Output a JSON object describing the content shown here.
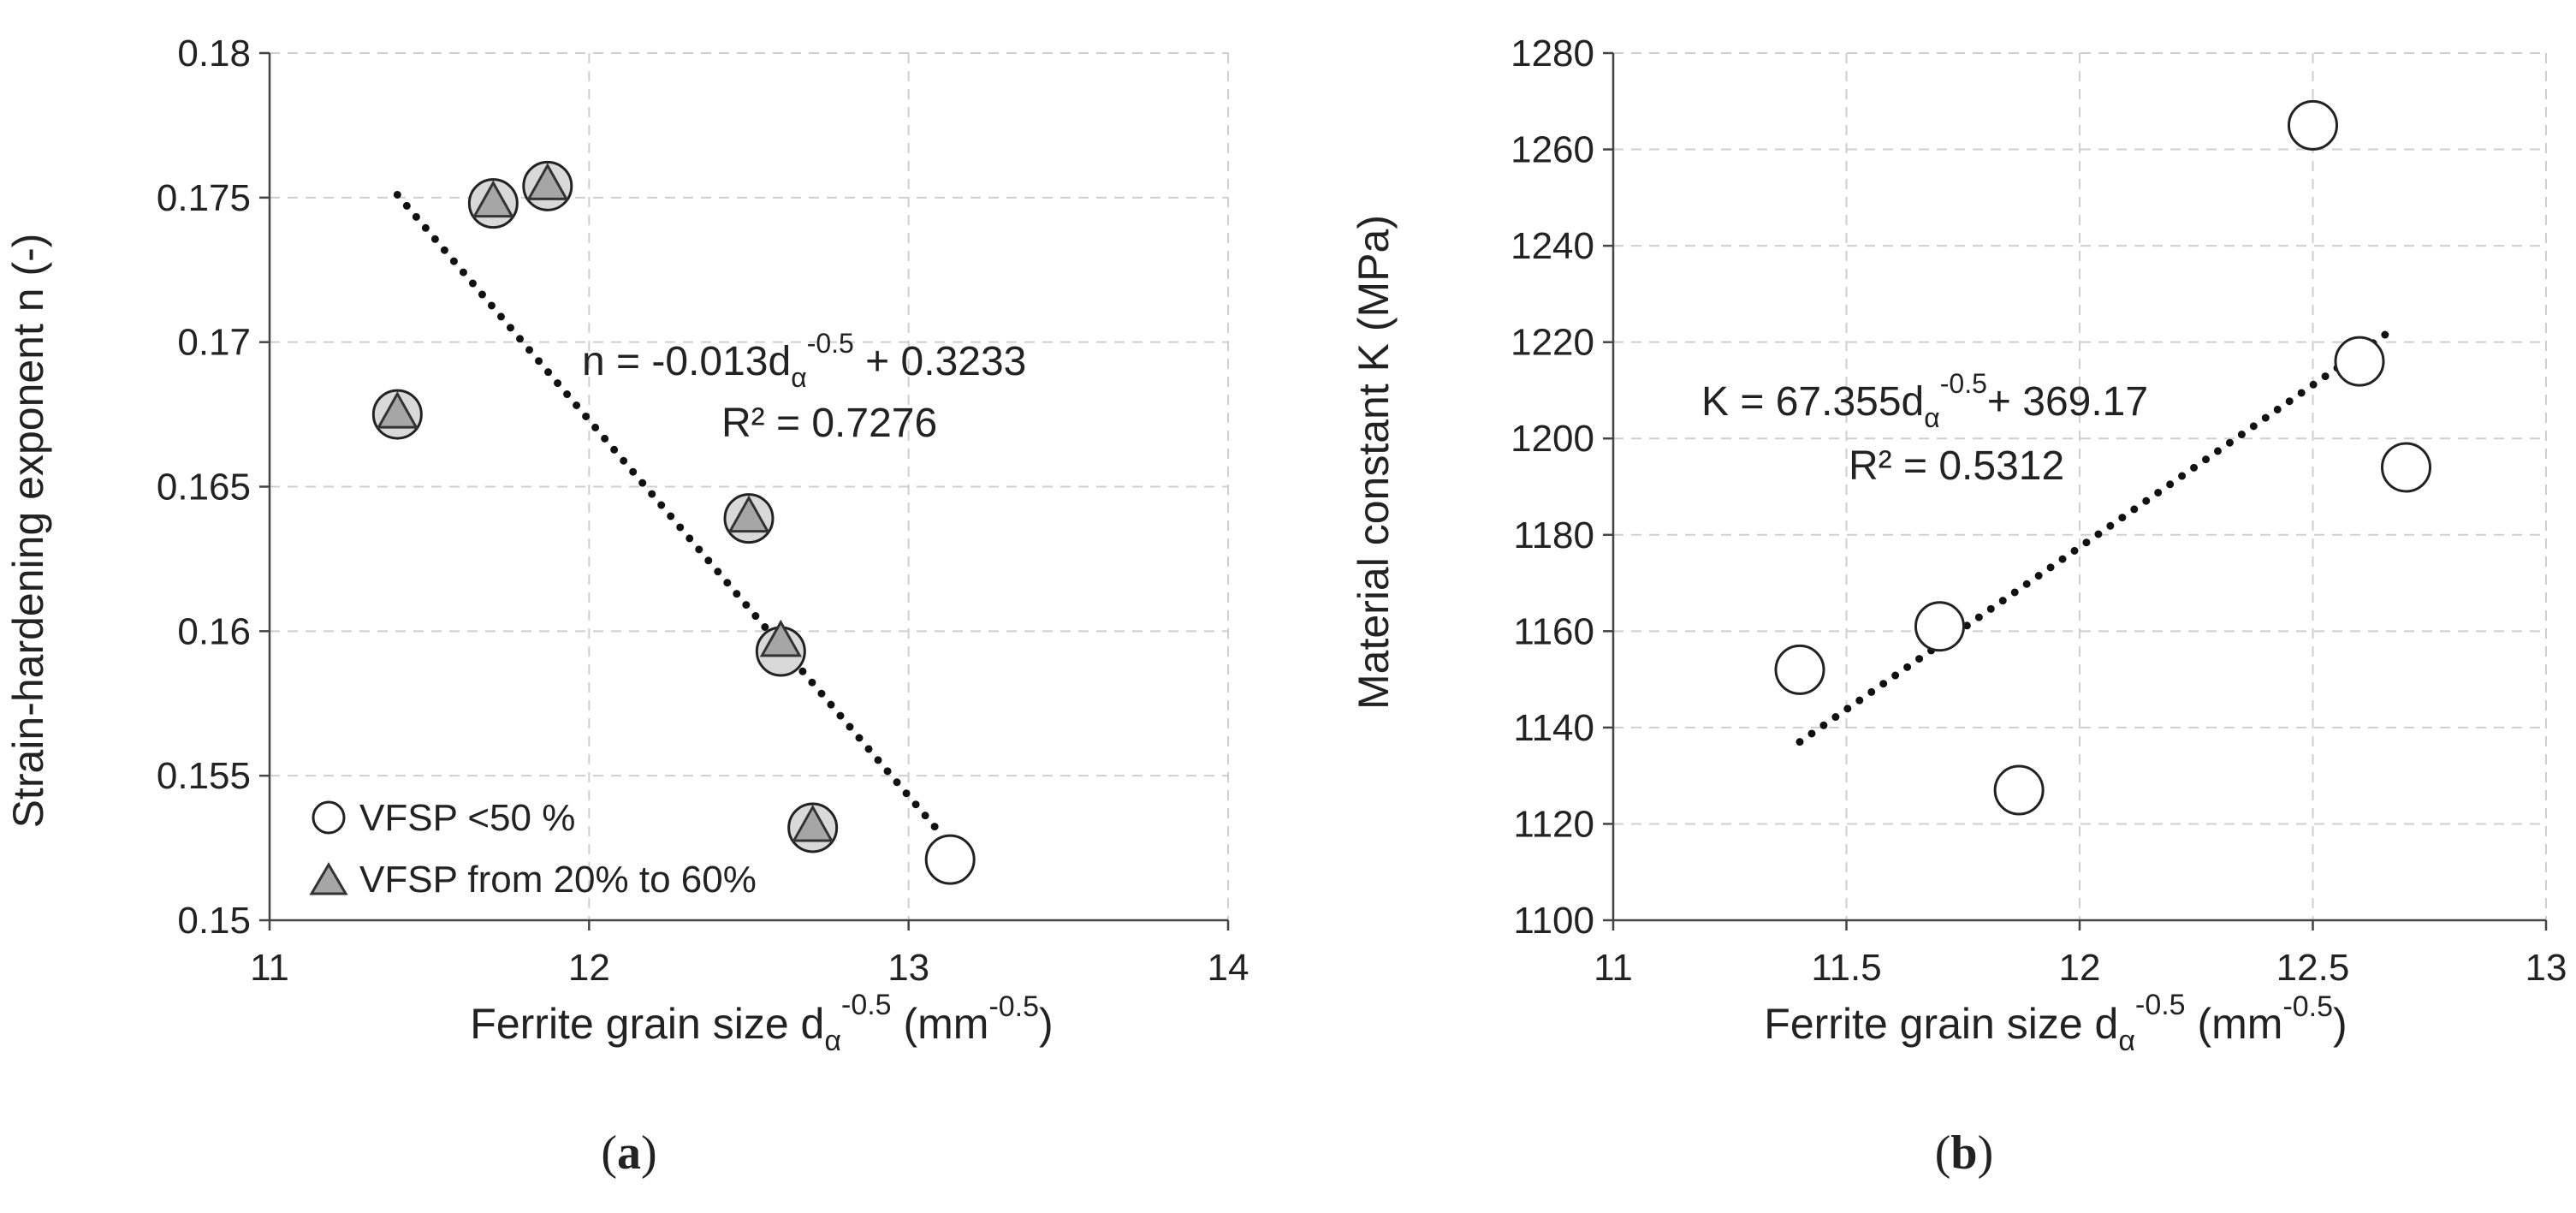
{
  "colors": {
    "grid": "#cfcfcf",
    "axis": "#444444",
    "trendline": "#111111",
    "open_marker_fill": "#ffffff",
    "triangle_fill": "#a6a6a6"
  },
  "chart_data": [
    {
      "type": "scatter",
      "panel_label": "a",
      "xlabel": {
        "main": "Ferrite grain size d",
        "sub": "α",
        "sup": "-0.5",
        "unit_open": " (mm",
        "unit_sup": "-0.5",
        "unit_close": ")"
      },
      "ylabel": "Strain-hardening exponent n  (-)",
      "xlim": [
        11,
        14
      ],
      "ylim": [
        0.15,
        0.18
      ],
      "xticks": [
        11,
        12,
        13,
        14
      ],
      "xtick_labels": [
        "11",
        "12",
        "13",
        "14"
      ],
      "yticks": [
        0.15,
        0.155,
        0.16,
        0.165,
        0.17,
        0.175,
        0.18
      ],
      "ytick_labels": [
        "0.15",
        "0.155",
        "0.16",
        "0.165",
        "0.17",
        "0.175",
        "0.18"
      ],
      "grid": true,
      "legend_position": "bottom-left",
      "series": [
        {
          "name": "VFSP <50 %",
          "marker": "circle",
          "x": [
            11.4,
            11.7,
            11.87,
            12.5,
            12.6,
            12.7,
            13.13
          ],
          "y": [
            0.1675,
            0.1748,
            0.1754,
            0.1639,
            0.1593,
            0.1532,
            0.1521
          ]
        },
        {
          "name": "VFSP from 20% to 60%",
          "marker": "triangle",
          "x": [
            11.4,
            11.7,
            11.87,
            12.5,
            12.6,
            12.7
          ],
          "y": [
            0.1675,
            0.1748,
            0.1754,
            0.1639,
            0.1596,
            0.1532
          ]
        }
      ],
      "trendline": {
        "slope": -0.013,
        "intercept": 0.3233,
        "x_range": [
          11.4,
          13.1
        ]
      },
      "annotations": {
        "eq_main": "n = -0.013d",
        "eq_sub": "α",
        "eq_sup": "-0.5",
        "eq_tail": " + 0.3233",
        "r2": "R² = 0.7276"
      }
    },
    {
      "type": "scatter",
      "panel_label": "b",
      "xlabel": {
        "main": "Ferrite grain size d",
        "sub": "α",
        "sup": "-0.5",
        "unit_open": " (mm",
        "unit_sup": "-0.5",
        "unit_close": ")"
      },
      "ylabel": "Material constant K  (MPa)",
      "xlim": [
        11,
        13
      ],
      "ylim": [
        1100,
        1280
      ],
      "xticks": [
        11,
        11.5,
        12,
        12.5,
        13
      ],
      "xtick_labels": [
        "11",
        "11.5",
        "12",
        "12.5",
        "13"
      ],
      "yticks": [
        1100,
        1120,
        1140,
        1160,
        1180,
        1200,
        1220,
        1240,
        1260,
        1280
      ],
      "ytick_labels": [
        "1100",
        "1120",
        "1140",
        "1160",
        "1180",
        "1200",
        "1220",
        "1240",
        "1260",
        "1280"
      ],
      "grid": true,
      "series": [
        {
          "marker": "circle",
          "x": [
            11.4,
            11.7,
            11.87,
            12.5,
            12.6,
            12.7
          ],
          "y": [
            1152,
            1161,
            1127,
            1265,
            1216,
            1194
          ]
        }
      ],
      "trendline": {
        "slope": 67.355,
        "intercept": 369.17,
        "x_range": [
          11.4,
          12.67
        ]
      },
      "annotations": {
        "eq_main": "K = 67.355d",
        "eq_sub": "α",
        "eq_sup": "-0.5",
        "eq_tail": "+ 369.17",
        "r2": "R² = 0.5312"
      }
    }
  ]
}
